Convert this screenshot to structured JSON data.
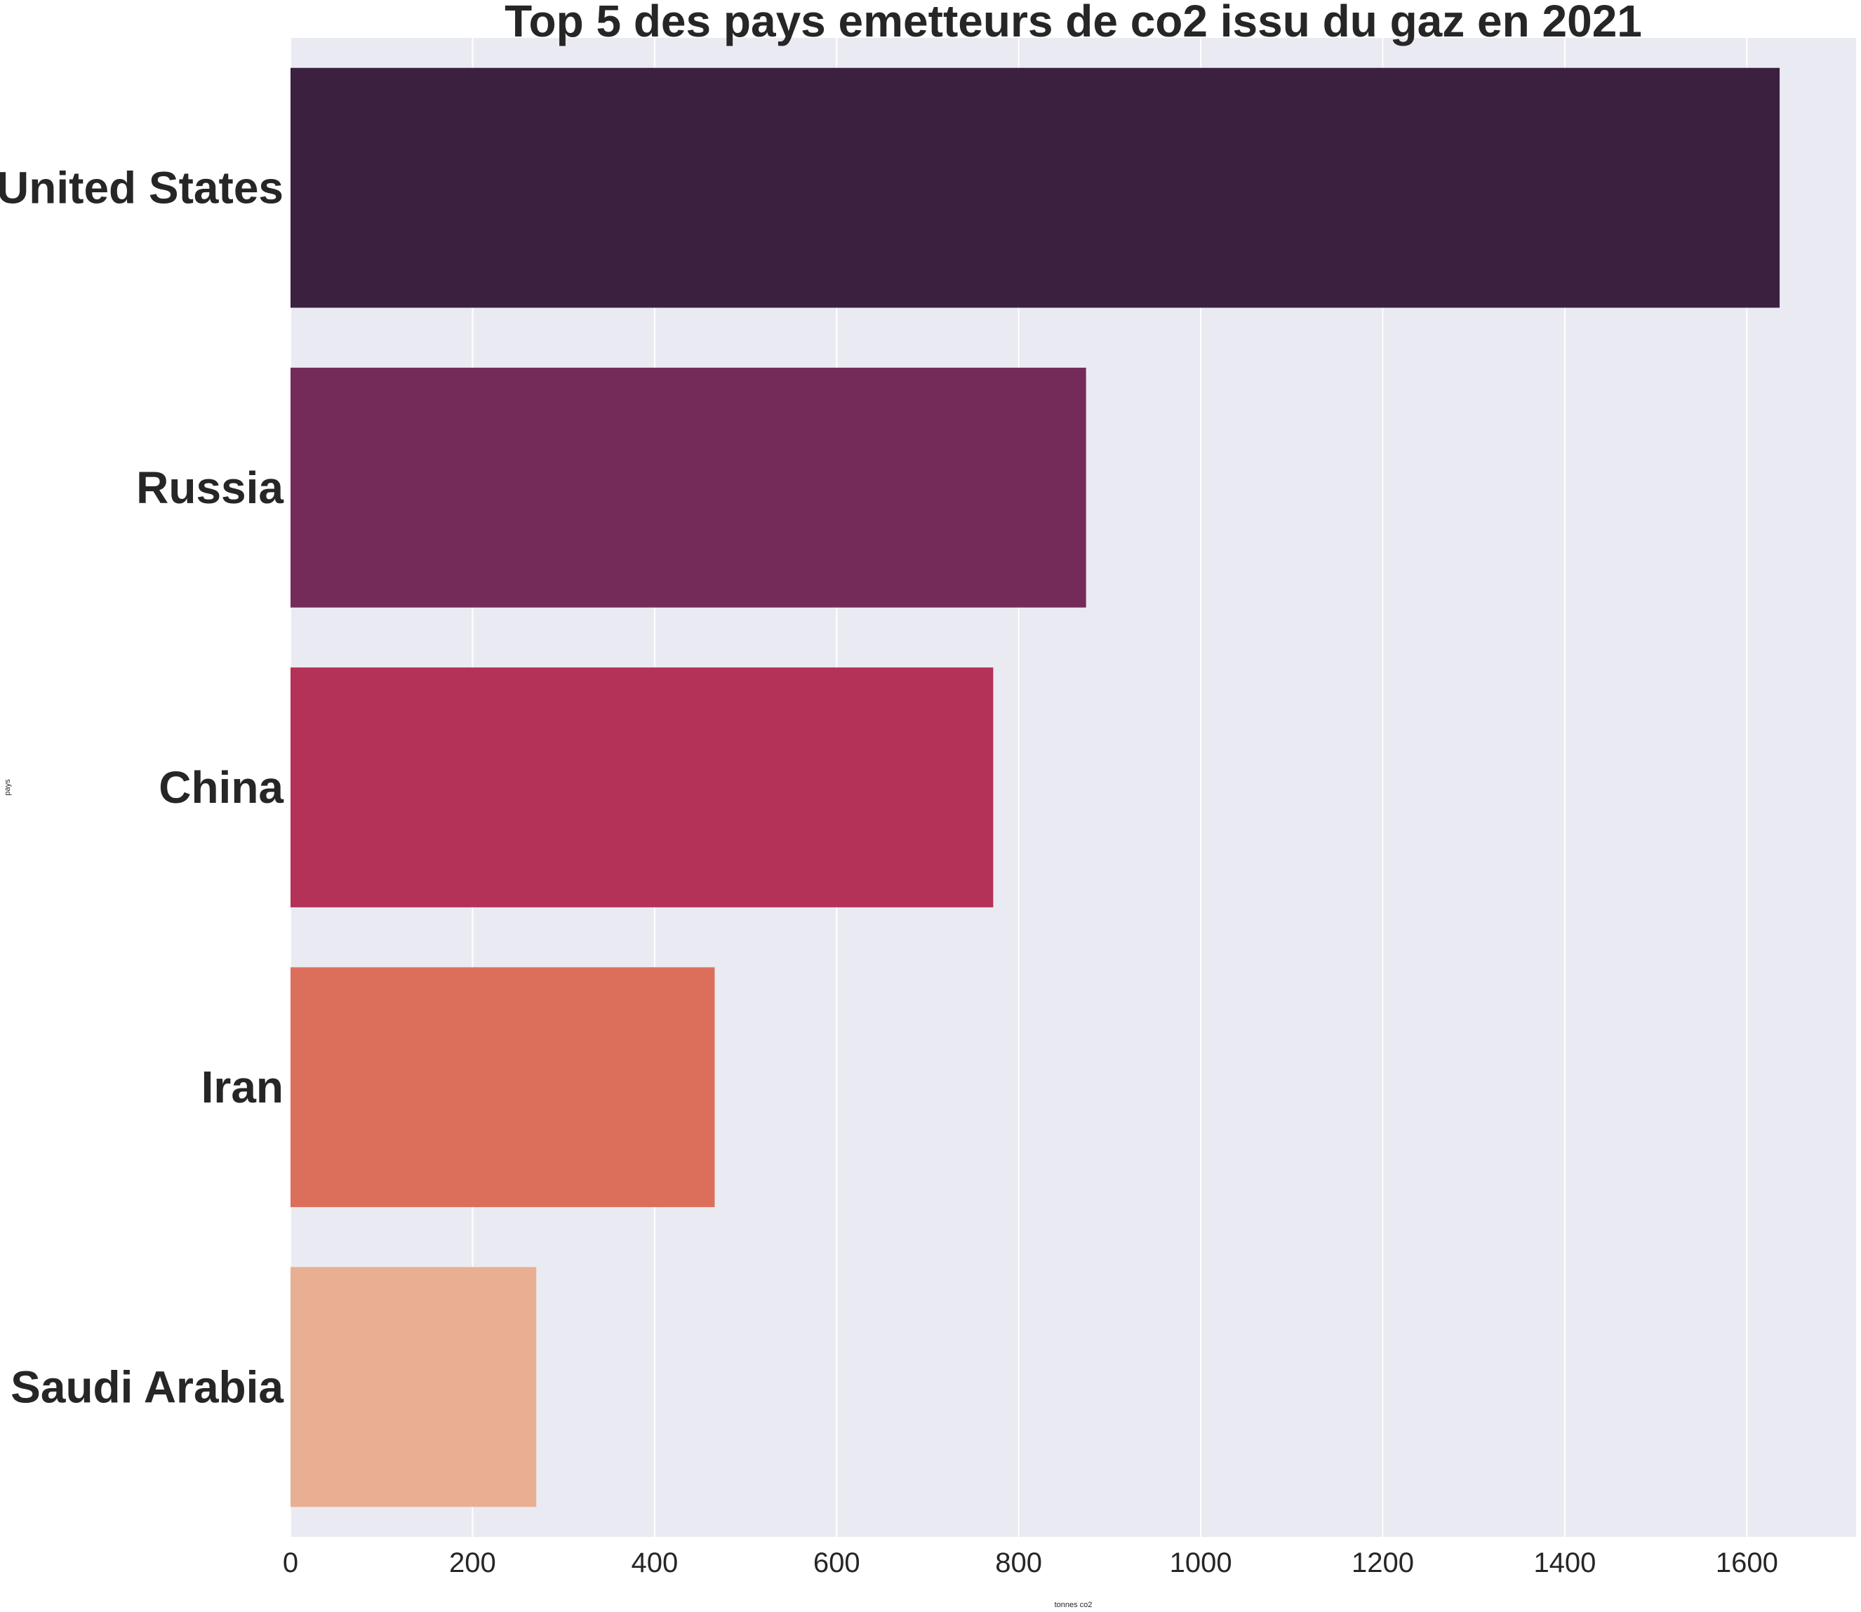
{
  "chart_data": {
    "type": "bar",
    "orientation": "horizontal",
    "title": "Top 5 des pays emetteurs de co2 issu du gaz en 2021",
    "xlabel": "tonnes co2",
    "ylabel": "pays",
    "categories": [
      "United States",
      "Russia",
      "China",
      "Iran",
      "Saudi Arabia"
    ],
    "values": [
      1636,
      874,
      772,
      466,
      270
    ],
    "colors": [
      "#3b203f",
      "#752b59",
      "#b43157",
      "#dc6f5b",
      "#e9af92"
    ],
    "xlim": [
      0,
      1720
    ],
    "xticks": [
      "0",
      "200",
      "400",
      "600",
      "800",
      "1000",
      "1200",
      "1400",
      "1600"
    ],
    "xtick_values": [
      0,
      200,
      400,
      600,
      800,
      1000,
      1200,
      1400,
      1600
    ],
    "grid": true,
    "background": "#eaeaf2",
    "grid_color": "#ffffff"
  }
}
